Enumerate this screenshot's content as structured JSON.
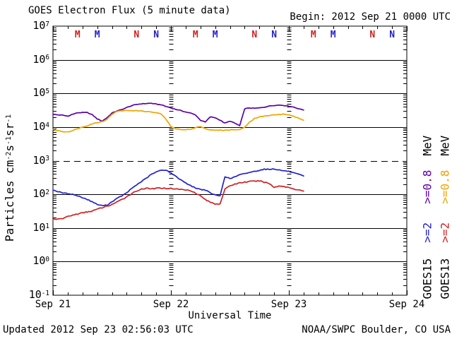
{
  "title": "GOES Electron Flux (5 minute data)",
  "begin_label": "Begin: 2012 Sep 21 0000 UTC",
  "updated_label": "Updated 2012 Sep 23 02:56:03 UTC",
  "source_label": "NOAA/SWPC Boulder, CO USA",
  "xaxis": {
    "title": "Universal Time",
    "day_ticks": [
      {
        "label": "Sep 21",
        "hour": 0
      },
      {
        "label": "Sep 22",
        "hour": 24
      },
      {
        "label": "Sep 23",
        "hour": 48
      },
      {
        "label": "Sep 24",
        "hour": 72
      }
    ]
  },
  "yaxis": {
    "title_parts": [
      {
        "text": "Particles cm",
        "sup": false
      },
      {
        "text": "-2",
        "sup": true
      },
      {
        "text": "s",
        "sup": false
      },
      {
        "text": "-1",
        "sup": true
      },
      {
        "text": "sr",
        "sup": false
      },
      {
        "text": "-1",
        "sup": true
      }
    ],
    "tick_exponents": [
      7,
      6,
      5,
      4,
      3,
      2,
      1,
      0,
      -1
    ]
  },
  "top_markers": [
    {
      "label": "M",
      "color": "red",
      "hour": 5
    },
    {
      "label": "M",
      "color": "blue",
      "hour": 9
    },
    {
      "label": "N",
      "color": "red",
      "hour": 17
    },
    {
      "label": "N",
      "color": "blue",
      "hour": 21
    },
    {
      "label": "M",
      "color": "red",
      "hour": 29
    },
    {
      "label": "M",
      "color": "blue",
      "hour": 33
    },
    {
      "label": "N",
      "color": "red",
      "hour": 41
    },
    {
      "label": "N",
      "color": "blue",
      "hour": 45
    },
    {
      "label": "M",
      "color": "red",
      "hour": 53
    },
    {
      "label": "M",
      "color": "blue",
      "hour": 57
    },
    {
      "label": "N",
      "color": "red",
      "hour": 65
    },
    {
      "label": "N",
      "color": "blue",
      "hour": 69
    }
  ],
  "right_labels": {
    "col1": [
      {
        "text": "GOES15",
        "color": "black"
      },
      {
        "text": ">=2",
        "color": "blue"
      },
      {
        "text": ">=0.8",
        "color": "purple"
      },
      {
        "text": "MeV",
        "color": "black"
      }
    ],
    "col2": [
      {
        "text": "GOES13",
        "color": "black"
      },
      {
        "text": ">=2",
        "color": "red"
      },
      {
        "text": ">=0.8",
        "color": "orange"
      },
      {
        "text": "MeV",
        "color": "black"
      }
    ]
  },
  "colors": {
    "black": "#000000",
    "red": "#cf2020",
    "blue": "#2121cc",
    "purple": "#5e00a8",
    "orange": "#efa400"
  },
  "chart_data": {
    "type": "line",
    "title": "GOES Electron Flux (5 minute data)",
    "x_unit": "hours since 2012 Sep 21 0000 UTC",
    "x_range_hours": [
      0,
      72
    ],
    "y_scale": "log10",
    "ylim": [
      0.1,
      10000000
    ],
    "threshold_line_y": 1000,
    "day_boundary_hours": [
      24,
      48
    ],
    "x_hours": [
      0,
      1,
      2,
      3,
      4,
      5,
      6,
      7,
      8,
      9,
      10,
      11,
      12,
      13,
      14,
      15,
      16,
      17,
      18,
      19,
      20,
      21,
      22,
      23,
      24,
      25,
      26,
      27,
      28,
      29,
      30,
      31,
      32,
      33,
      34,
      35,
      36,
      37,
      38,
      39,
      40,
      41,
      42,
      43,
      44,
      45,
      46,
      47,
      48,
      49,
      50,
      51
    ],
    "series": [
      {
        "name": "GOES15 >=0.8 MeV",
        "color_key": "purple",
        "values": [
          24000,
          23000,
          22500,
          21000,
          24000,
          26500,
          27000,
          27000,
          23000,
          17500,
          15000,
          19000,
          26000,
          30000,
          33000,
          38000,
          43000,
          47000,
          49000,
          50000,
          51000,
          48000,
          46000,
          41000,
          37000,
          33500,
          31000,
          28000,
          26000,
          23000,
          16000,
          14000,
          20000,
          19000,
          16000,
          13000,
          15000,
          13000,
          11000,
          35000,
          37000,
          36000,
          37000,
          39000,
          42000,
          44000,
          45000,
          44000,
          42000,
          39000,
          35000,
          32000
        ]
      },
      {
        "name": "GOES13 >=0.8 MeV",
        "color_key": "orange",
        "values": [
          8500,
          7800,
          7300,
          7200,
          7800,
          9000,
          10000,
          11000,
          12500,
          13500,
          14500,
          17000,
          24000,
          29000,
          30500,
          31000,
          31000,
          30500,
          30000,
          29000,
          28000,
          26500,
          24500,
          17000,
          10500,
          8800,
          8500,
          8400,
          8500,
          9500,
          10500,
          9000,
          8200,
          8000,
          8100,
          8000,
          8200,
          8400,
          8300,
          10000,
          14000,
          18000,
          20000,
          21000,
          22000,
          23000,
          23500,
          24000,
          23000,
          21000,
          18000,
          16000
        ]
      },
      {
        "name": "GOES15 >=2 MeV",
        "color_key": "blue",
        "values": [
          135,
          120,
          110,
          105,
          100,
          90,
          80,
          70,
          60,
          50,
          46,
          48,
          60,
          75,
          90,
          110,
          150,
          190,
          240,
          300,
          390,
          460,
          520,
          530,
          430,
          340,
          270,
          220,
          180,
          155,
          140,
          135,
          110,
          95,
          90,
          340,
          290,
          330,
          380,
          410,
          450,
          480,
          520,
          560,
          550,
          570,
          530,
          500,
          480,
          430,
          390,
          350
        ]
      },
      {
        "name": "GOES13 >=2 MeV",
        "color_key": "red",
        "values": [
          19,
          18,
          19,
          22,
          24,
          26,
          28,
          30,
          32,
          36,
          40,
          44,
          50,
          58,
          70,
          85,
          105,
          125,
          145,
          150,
          145,
          150,
          155,
          150,
          150,
          145,
          140,
          135,
          130,
          110,
          90,
          70,
          58,
          52,
          52,
          140,
          180,
          200,
          220,
          230,
          240,
          245,
          250,
          230,
          210,
          160,
          180,
          170,
          160,
          145,
          135,
          125
        ]
      }
    ]
  }
}
